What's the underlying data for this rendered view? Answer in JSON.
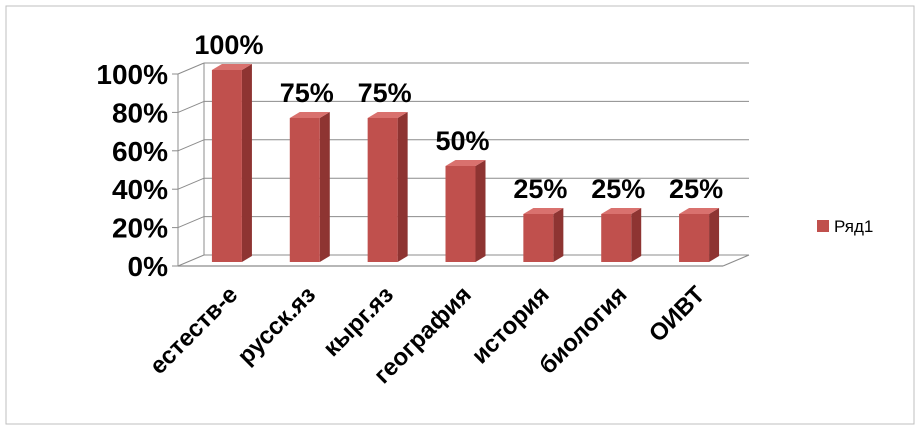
{
  "chart_data": {
    "type": "bar",
    "style": "3d-column",
    "categories": [
      "естеств-е",
      "русск.яз",
      "кырг.яз",
      "география",
      "история",
      "биология",
      "ОИВТ"
    ],
    "series": [
      {
        "name": "Ряд1",
        "values": [
          100,
          75,
          75,
          50,
          25,
          25,
          25
        ],
        "color": "#c0504d"
      }
    ],
    "data_labels": [
      "100%",
      "75%",
      "75%",
      "50%",
      "25%",
      "25%",
      "25%"
    ],
    "y_ticks": [
      {
        "value": 0,
        "label": "0%"
      },
      {
        "value": 20,
        "label": "20%"
      },
      {
        "value": 40,
        "label": "40%"
      },
      {
        "value": 60,
        "label": "60%"
      },
      {
        "value": 80,
        "label": "80%"
      },
      {
        "value": 100,
        "label": "100%"
      }
    ],
    "ylim": [
      0,
      100
    ],
    "title": "",
    "xlabel": "",
    "ylabel": "",
    "grid": true,
    "legend": "right",
    "colors": {
      "bar_front": "#c0504d",
      "bar_side": "#8e3432",
      "bar_top": "#d9716e",
      "grid": "#8c8c8c",
      "frame": "#bfbfbf"
    }
  }
}
